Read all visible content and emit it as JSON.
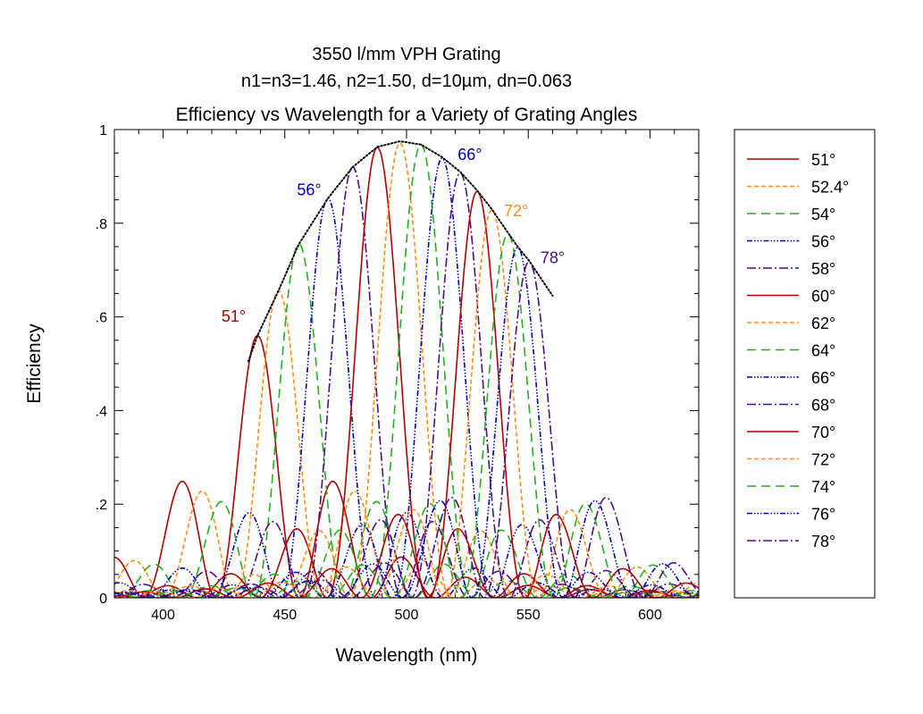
{
  "chart_data": {
    "type": "line",
    "title": [
      "3550 l/mm VPH Grating",
      "n1=n3=1.46, n2=1.50, d=10µm, dn=0.063",
      "Efficiency vs Wavelength for a Variety of Grating Angles"
    ],
    "xlabel": "Wavelength (nm)",
    "ylabel": "Efficiency",
    "xlim": [
      380,
      620
    ],
    "ylim": [
      0,
      1
    ],
    "xticks": [
      400,
      450,
      500,
      550,
      600
    ],
    "xtick_labels": [
      "400",
      "450",
      "500",
      "550",
      "600"
    ],
    "yticks": [
      0,
      0.2,
      0.4,
      0.6,
      0.8,
      1
    ],
    "ytick_labels": [
      "0",
      ".2",
      ".4",
      ".6",
      ".8",
      "1"
    ],
    "legend_position": "right-outside",
    "curve_model": "Kogelnik-type response around each Bragg peak; sidelobe scale ~8 nm",
    "series": [
      {
        "name": "51°",
        "peak_wavelength": 438.8,
        "peak_efficiency": 0.56,
        "color": "#b00000",
        "style": "solid"
      },
      {
        "name": "52.4°",
        "peak_wavelength": 447.4,
        "peak_efficiency": 0.656,
        "color": "#ff8c1a",
        "style": "dash"
      },
      {
        "name": "54°",
        "peak_wavelength": 455.8,
        "peak_efficiency": 0.756,
        "color": "#22b022",
        "style": "longdash"
      },
      {
        "name": "56°",
        "peak_wavelength": 467.7,
        "peak_efficiency": 0.853,
        "color": "#0000b4",
        "style": "dashdotdot"
      },
      {
        "name": "58°",
        "peak_wavelength": 477.9,
        "peak_efficiency": 0.92,
        "color": "#4b0f82",
        "style": "dashdot"
      },
      {
        "name": "60°",
        "peak_wavelength": 488.0,
        "peak_efficiency": 0.962,
        "color": "#b00000",
        "style": "solid"
      },
      {
        "name": "62°",
        "peak_wavelength": 497.3,
        "peak_efficiency": 0.971,
        "color": "#ff8c1a",
        "style": "dash"
      },
      {
        "name": "64°",
        "peak_wavelength": 505.9,
        "peak_efficiency": 0.968,
        "color": "#22b022",
        "style": "longdash"
      },
      {
        "name": "66°",
        "peak_wavelength": 514.6,
        "peak_efficiency": 0.939,
        "color": "#0000b4",
        "style": "dashdotdot"
      },
      {
        "name": "68°",
        "peak_wavelength": 522.0,
        "peak_efficiency": 0.908,
        "color": "#4b0f82",
        "style": "dashdot"
      },
      {
        "name": "70°",
        "peak_wavelength": 529.0,
        "peak_efficiency": 0.868,
        "color": "#b00000",
        "style": "solid"
      },
      {
        "name": "72°",
        "peak_wavelength": 535.0,
        "peak_efficiency": 0.828,
        "color": "#ff8c1a",
        "style": "dash"
      },
      {
        "name": "74°",
        "peak_wavelength": 541.6,
        "peak_efficiency": 0.777,
        "color": "#22b022",
        "style": "longdash"
      },
      {
        "name": "76°",
        "peak_wavelength": 545.6,
        "peak_efficiency": 0.748,
        "color": "#0000b4",
        "style": "dashdotdot"
      },
      {
        "name": "78°",
        "peak_wavelength": 550.3,
        "peak_efficiency": 0.718,
        "color": "#4b0f82",
        "style": "dashdot"
      }
    ],
    "envelope": {
      "style": "dotted",
      "color": "#000000",
      "points": [
        [
          435,
          0.505
        ],
        [
          438.8,
          0.56
        ],
        [
          447.4,
          0.656
        ],
        [
          455.8,
          0.756
        ],
        [
          467.7,
          0.853
        ],
        [
          477.9,
          0.92
        ],
        [
          488,
          0.963
        ],
        [
          497.3,
          0.975
        ],
        [
          505.9,
          0.968
        ],
        [
          514.6,
          0.941
        ],
        [
          522,
          0.91
        ],
        [
          529,
          0.87
        ],
        [
          535,
          0.83
        ],
        [
          541.6,
          0.78
        ],
        [
          545.6,
          0.75
        ],
        [
          550.3,
          0.72
        ],
        [
          560,
          0.645
        ]
      ]
    },
    "annotations": [
      {
        "text": "51°",
        "wavelength": 429,
        "efficiency": 0.59,
        "color": "#b00000"
      },
      {
        "text": "56°",
        "wavelength": 460,
        "efficiency": 0.86,
        "color": "#0000b4"
      },
      {
        "text": "66°",
        "wavelength": 526,
        "efficiency": 0.935,
        "color": "#0000b4"
      },
      {
        "text": "72°",
        "wavelength": 545,
        "efficiency": 0.815,
        "color": "#ff8c1a"
      },
      {
        "text": "78°",
        "wavelength": 560,
        "efficiency": 0.715,
        "color": "#4b0f82"
      }
    ]
  }
}
